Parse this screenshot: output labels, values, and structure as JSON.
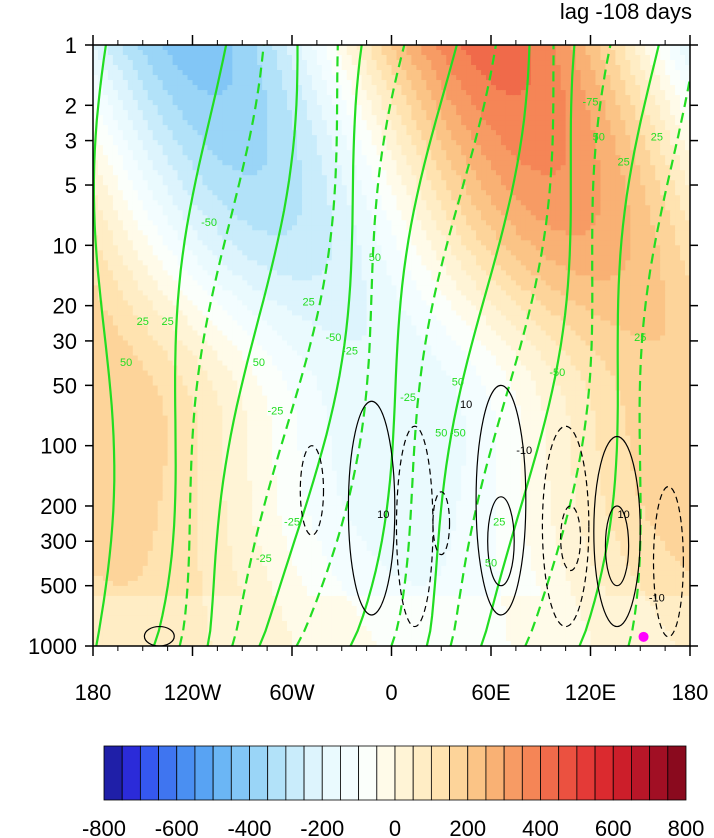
{
  "chart_data": {
    "type": "heatmap",
    "title": "lag -108 days",
    "xlabel": "",
    "ylabel": "",
    "x_range": [
      -180,
      180
    ],
    "y_range": [
      1000,
      1
    ],
    "y_scale": "log",
    "x_ticks": [
      {
        "value": -180,
        "label": "180"
      },
      {
        "value": -120,
        "label": "120W"
      },
      {
        "value": -60,
        "label": "60W"
      },
      {
        "value": 0,
        "label": "0"
      },
      {
        "value": 60,
        "label": "60E"
      },
      {
        "value": 120,
        "label": "120E"
      },
      {
        "value": 180,
        "label": "180"
      }
    ],
    "y_ticks": [
      1,
      2,
      3,
      5,
      10,
      20,
      30,
      50,
      100,
      200,
      300,
      500,
      1000
    ],
    "colorbar": {
      "levels": [
        -800,
        -750,
        -700,
        -650,
        -600,
        -550,
        -500,
        -450,
        -400,
        -350,
        -300,
        -250,
        -200,
        -150,
        -100,
        -50,
        0,
        50,
        100,
        150,
        200,
        250,
        300,
        350,
        400,
        450,
        500,
        550,
        600,
        650,
        700,
        750,
        800
      ],
      "labels": [
        "-800",
        "-600",
        "-400",
        "-200",
        "0",
        "200",
        "400",
        "600",
        "800"
      ],
      "colors": [
        "#1f1fa8",
        "#2b2bd9",
        "#3558ef",
        "#3f75f0",
        "#4a8ff2",
        "#58a3f3",
        "#6bb6f5",
        "#82c6f6",
        "#9ad5f7",
        "#b2e2f9",
        "#c9ecfb",
        "#ddf4fd",
        "#eafafe",
        "#f3fdff",
        "#fbfffb",
        "#fffbe9",
        "#fff4d6",
        "#ffedc5",
        "#ffe3b0",
        "#fdd49a",
        "#fbc486",
        "#f9b174",
        "#f79b64",
        "#f58556",
        "#f06a4a",
        "#eb5140",
        "#e43a37",
        "#db2a2f",
        "#cc1e2a",
        "#b81628",
        "#a10f24",
        "#8a0a1e"
      ],
      "label_values": [
        -800,
        -600,
        -400,
        -200,
        0,
        200,
        400,
        600,
        800
      ]
    },
    "contour_labels": {
      "green": [
        "25",
        "50",
        "75",
        "-25",
        "-50",
        "-75"
      ],
      "black": [
        "10",
        "-10"
      ]
    },
    "marker": {
      "lon": 152,
      "pressure": 900,
      "color": "#ff00ff"
    },
    "colors": {
      "green_contour": "#22dd22",
      "black_contour": "#000000",
      "marker": "#ff00ff"
    }
  }
}
